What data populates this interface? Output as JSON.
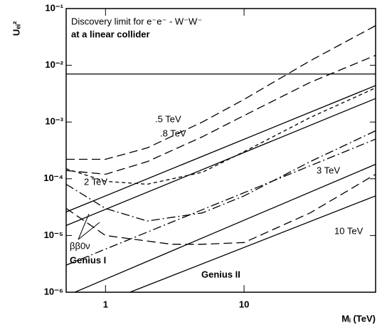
{
  "chart_data": {
    "type": "line",
    "y_label": "Uₑᵢ²",
    "x_label": "Mᵢ (TeV)",
    "annotations": [
      "Discovery limit for e⁻e⁻ - W⁻W⁻",
      "at a linear collider",
      ".5 TeV",
      ".8 TeV",
      "2 TeV",
      "3 TeV",
      "10 TeV",
      "ββ0ν",
      "Genius I",
      "Genius II"
    ],
    "log_x": true,
    "log_y": true,
    "xlim": [
      0.52,
      89
    ],
    "ylim": [
      1e-06,
      0.1
    ],
    "xticks": [
      1,
      10
    ],
    "yticks": [
      {
        "value": 1e-06,
        "label": "10⁻⁶"
      },
      {
        "value": 1e-05,
        "label": "10⁻⁵"
      },
      {
        "value": 0.0001,
        "label": "10⁻⁴"
      },
      {
        "value": 0.001,
        "label": "10⁻³"
      },
      {
        "value": 0.01,
        "label": "10⁻²"
      },
      {
        "value": 0.1,
        "label": "10⁻¹"
      }
    ],
    "series": [
      {
        "color": "#000000",
        "dash": "solid",
        "x": [
          0.52,
          89
        ],
        "values": [
          0.007,
          0.007
        ]
      },
      {
        "color": "#000000",
        "dash": "long",
        "x": [
          0.52,
          1,
          2,
          5,
          10,
          30,
          89
        ],
        "values": [
          0.00022,
          0.00022,
          0.00035,
          0.001,
          0.0025,
          0.012,
          0.05
        ]
      },
      {
        "color": "#000000",
        "dash": "long",
        "x": [
          0.52,
          1,
          2,
          5,
          10,
          30,
          89
        ],
        "values": [
          0.00014,
          0.00012,
          0.0002,
          0.00055,
          0.0013,
          0.005,
          0.015
        ]
      },
      {
        "color": "#000000",
        "dash": "short",
        "x": [
          0.52,
          1,
          2,
          5,
          10,
          30,
          89
        ],
        "values": [
          0.00015,
          9e-05,
          8e-05,
          0.00013,
          0.0003,
          0.0012,
          0.004
        ]
      },
      {
        "color": "#000000",
        "dash": "dashdot",
        "x": [
          0.52,
          1,
          2,
          5,
          10,
          30,
          89
        ],
        "values": [
          8e-05,
          3e-05,
          1.8e-05,
          2.5e-05,
          5e-05,
          0.0002,
          0.0007
        ]
      },
      {
        "color": "#000000",
        "dash": "long",
        "x": [
          0.52,
          1,
          3,
          5,
          10,
          30,
          89
        ],
        "values": [
          3e-05,
          1e-05,
          7e-06,
          7e-06,
          7.5e-06,
          2.5e-05,
          0.00012
        ]
      },
      {
        "color": "#000000",
        "dash": "solid",
        "x": [
          0.52,
          89
        ],
        "values": [
          2.6e-05,
          0.0044
        ]
      },
      {
        "color": "#000000",
        "dash": "solid",
        "x": [
          0.52,
          89
        ],
        "values": [
          1.5e-05,
          0.0026
        ]
      },
      {
        "color": "#000000",
        "dash": "dashdot",
        "x": [
          0.52,
          89
        ],
        "values": [
          3e-06,
          0.0005
        ]
      },
      {
        "color": "#000000",
        "dash": "solid",
        "x": [
          0.6,
          89
        ],
        "values": [
          1e-06,
          0.00018
        ]
      },
      {
        "color": "#000000",
        "dash": "solid",
        "x": [
          1.5,
          89
        ],
        "values": [
          1e-06,
          5e-05
        ]
      }
    ]
  }
}
